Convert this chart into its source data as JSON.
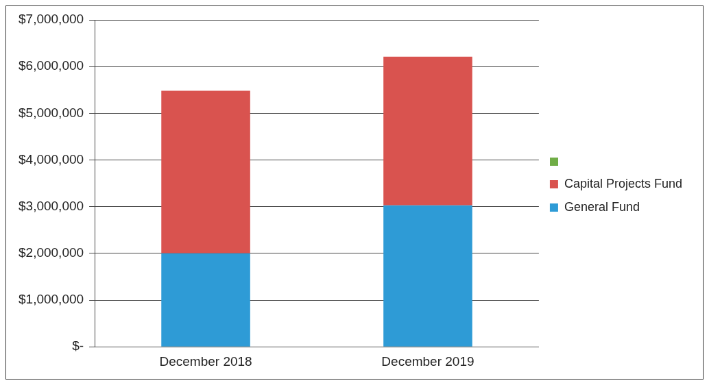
{
  "chart_data": {
    "type": "bar",
    "stacked": true,
    "categories": [
      "December 2018",
      "December 2019"
    ],
    "series": [
      {
        "name": "General Fund",
        "color": "#2e9bd6",
        "values": [
          2000000,
          3030000
        ]
      },
      {
        "name": "Capital Projects Fund",
        "color": "#d9534f",
        "values": [
          3480000,
          3180000
        ]
      }
    ],
    "ylim": [
      0,
      7000000
    ],
    "yticks": [
      {
        "value": 0,
        "label": "$-"
      },
      {
        "value": 1000000,
        "label": "$1,000,000"
      },
      {
        "value": 2000000,
        "label": "$2,000,000"
      },
      {
        "value": 3000000,
        "label": "$3,000,000"
      },
      {
        "value": 4000000,
        "label": "$4,000,000"
      },
      {
        "value": 5000000,
        "label": "$5,000,000"
      },
      {
        "value": 6000000,
        "label": "$6,000,000"
      },
      {
        "value": 7000000,
        "label": "$7,000,000"
      }
    ],
    "grid": "y",
    "legend": "right"
  }
}
